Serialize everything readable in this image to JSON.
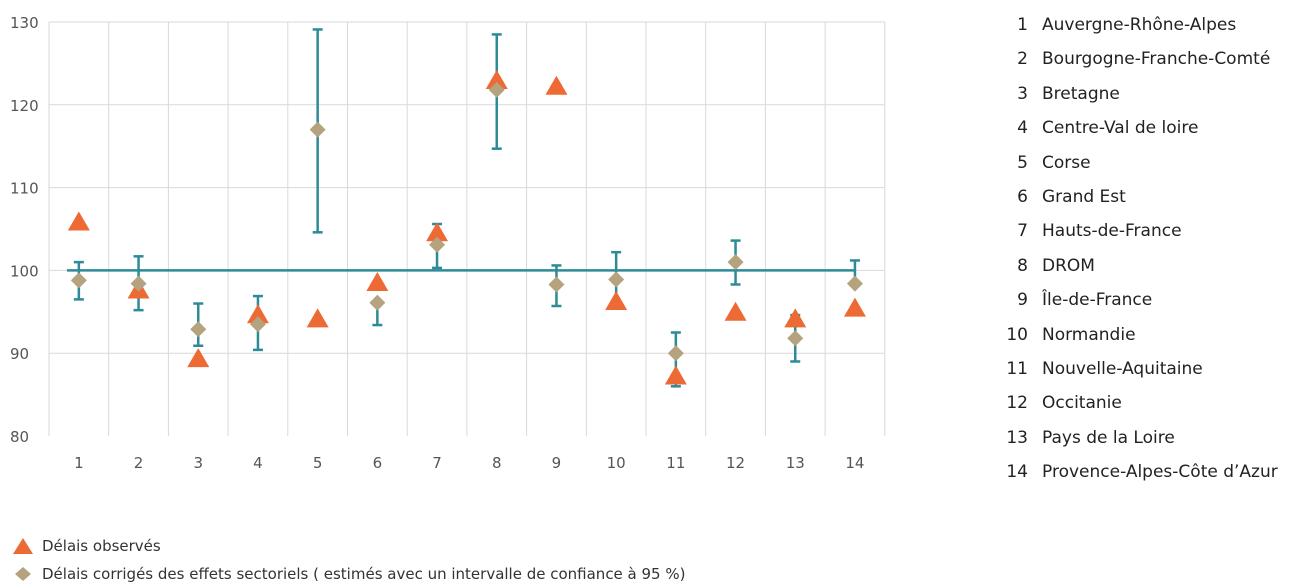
{
  "chart_data": {
    "type": "scatter",
    "x": [
      1,
      2,
      3,
      4,
      5,
      6,
      7,
      8,
      9,
      10,
      11,
      12,
      13,
      14
    ],
    "ylim": [
      80,
      130
    ],
    "yticks": [
      80,
      90,
      100,
      110,
      120,
      130
    ],
    "reference_line": 100,
    "grid": "vertical",
    "series": [
      {
        "name": "Délais observés",
        "marker": "triangle",
        "color": "#ee6a35",
        "values": [
          105.9,
          97.7,
          89.4,
          94.7,
          94.2,
          98.6,
          104.6,
          123.0,
          122.3,
          96.3,
          87.3,
          95.0,
          94.2,
          95.5
        ]
      },
      {
        "name": "Délais corrigés des effets sectoriels ( estimés avec un intervalle de confiance à 95 %)",
        "marker": "diamond",
        "color": "#b5a27e",
        "values": [
          98.8,
          98.4,
          92.9,
          93.5,
          117.0,
          96.1,
          103.1,
          121.8,
          98.3,
          98.9,
          90.0,
          101.0,
          91.8,
          98.4
        ],
        "ci_low": [
          96.5,
          95.2,
          90.9,
          90.4,
          104.6,
          93.4,
          100.3,
          114.7,
          95.7,
          95.4,
          86.0,
          98.3,
          89.0,
          null
        ],
        "ci_high": [
          101.0,
          101.7,
          96.0,
          96.9,
          129.1,
          null,
          105.6,
          128.5,
          100.6,
          102.2,
          92.5,
          103.6,
          94.6,
          101.2
        ],
        "ci_color": "#2c8b96"
      }
    ]
  },
  "regions": [
    {
      "num": "1",
      "name": "Auvergne-Rhône-Alpes"
    },
    {
      "num": "2",
      "name": "Bourgogne-Franche-Comté"
    },
    {
      "num": "3",
      "name": "Bretagne"
    },
    {
      "num": "4",
      "name": "Centre-Val de loire"
    },
    {
      "num": "5",
      "name": "Corse"
    },
    {
      "num": "6",
      "name": "Grand Est"
    },
    {
      "num": "7",
      "name": "Hauts-de-France"
    },
    {
      "num": "8",
      "name": "DROM"
    },
    {
      "num": "9",
      "name": "Île-de-France"
    },
    {
      "num": "10",
      "name": "Normandie"
    },
    {
      "num": "11",
      "name": "Nouvelle-Aquitaine"
    },
    {
      "num": "12",
      "name": "Occitanie"
    },
    {
      "num": "13",
      "name": "Pays de la Loire"
    },
    {
      "num": "14",
      "name": "Provence-Alpes-Côte d’Azur"
    }
  ],
  "legend": {
    "observed": "Délais observés",
    "corrected": "Délais corrigés des effets sectoriels ( estimés avec un intervalle de confiance à 95 %)"
  },
  "colors": {
    "triangle": "#ee6a35",
    "diamond": "#b5a27e",
    "ci": "#2c8b96",
    "grid": "#d9d9d9"
  }
}
